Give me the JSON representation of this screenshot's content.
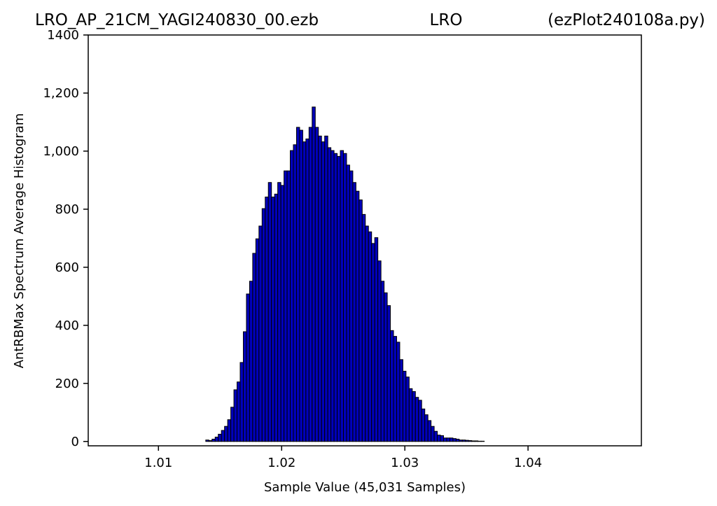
{
  "title": {
    "left": "LRO_AP_21CM_YAGI240830_00.ezb",
    "center": "LRO",
    "right": "(ezPlot240108a.py)"
  },
  "colors": {
    "bar_fill": "#0000bb",
    "bar_edge": "#000000",
    "background": "#ffffff",
    "axes": "#000000"
  },
  "chart_data": {
    "type": "bar",
    "title": "LRO_AP_21CM_YAGI240830_00.ezb LRO (ezPlot240108a.py)",
    "xlabel": "Sample Value (45,031 Samples)",
    "ylabel": "AntRBMax Spectrum Average Histogram",
    "xlim": [
      1.0043,
      1.0492
    ],
    "ylim": [
      -15,
      1400
    ],
    "grid": false,
    "xticks": [
      1.01,
      1.02,
      1.03,
      1.04
    ],
    "xtick_labels": [
      "1.01",
      "1.02",
      "1.03",
      "1.04"
    ],
    "yticks": [
      0,
      200,
      400,
      600,
      800,
      1000,
      1200,
      1400
    ],
    "ytick_labels": [
      "0",
      "200",
      "400",
      "600",
      "800",
      "1,000",
      "1,200",
      "1400"
    ],
    "bin_start": 1.01384,
    "bin_width": 0.000254,
    "values": [
      5,
      3,
      8,
      15,
      25,
      38,
      52,
      75,
      118,
      178,
      205,
      272,
      378,
      508,
      552,
      648,
      698,
      742,
      802,
      842,
      892,
      842,
      852,
      892,
      882,
      932,
      932,
      1002,
      1022,
      1082,
      1072,
      1032,
      1042,
      1082,
      1152,
      1082,
      1052,
      1032,
      1052,
      1012,
      1002,
      992,
      982,
      1002,
      992,
      952,
      932,
      892,
      862,
      832,
      782,
      742,
      722,
      682,
      702,
      622,
      552,
      512,
      468,
      382,
      362,
      342,
      282,
      242,
      222,
      182,
      172,
      152,
      142,
      112,
      92,
      72,
      52,
      35,
      22,
      20,
      12,
      12,
      12,
      10,
      8,
      5,
      5,
      4,
      3,
      2,
      2,
      1,
      1,
      0
    ]
  }
}
